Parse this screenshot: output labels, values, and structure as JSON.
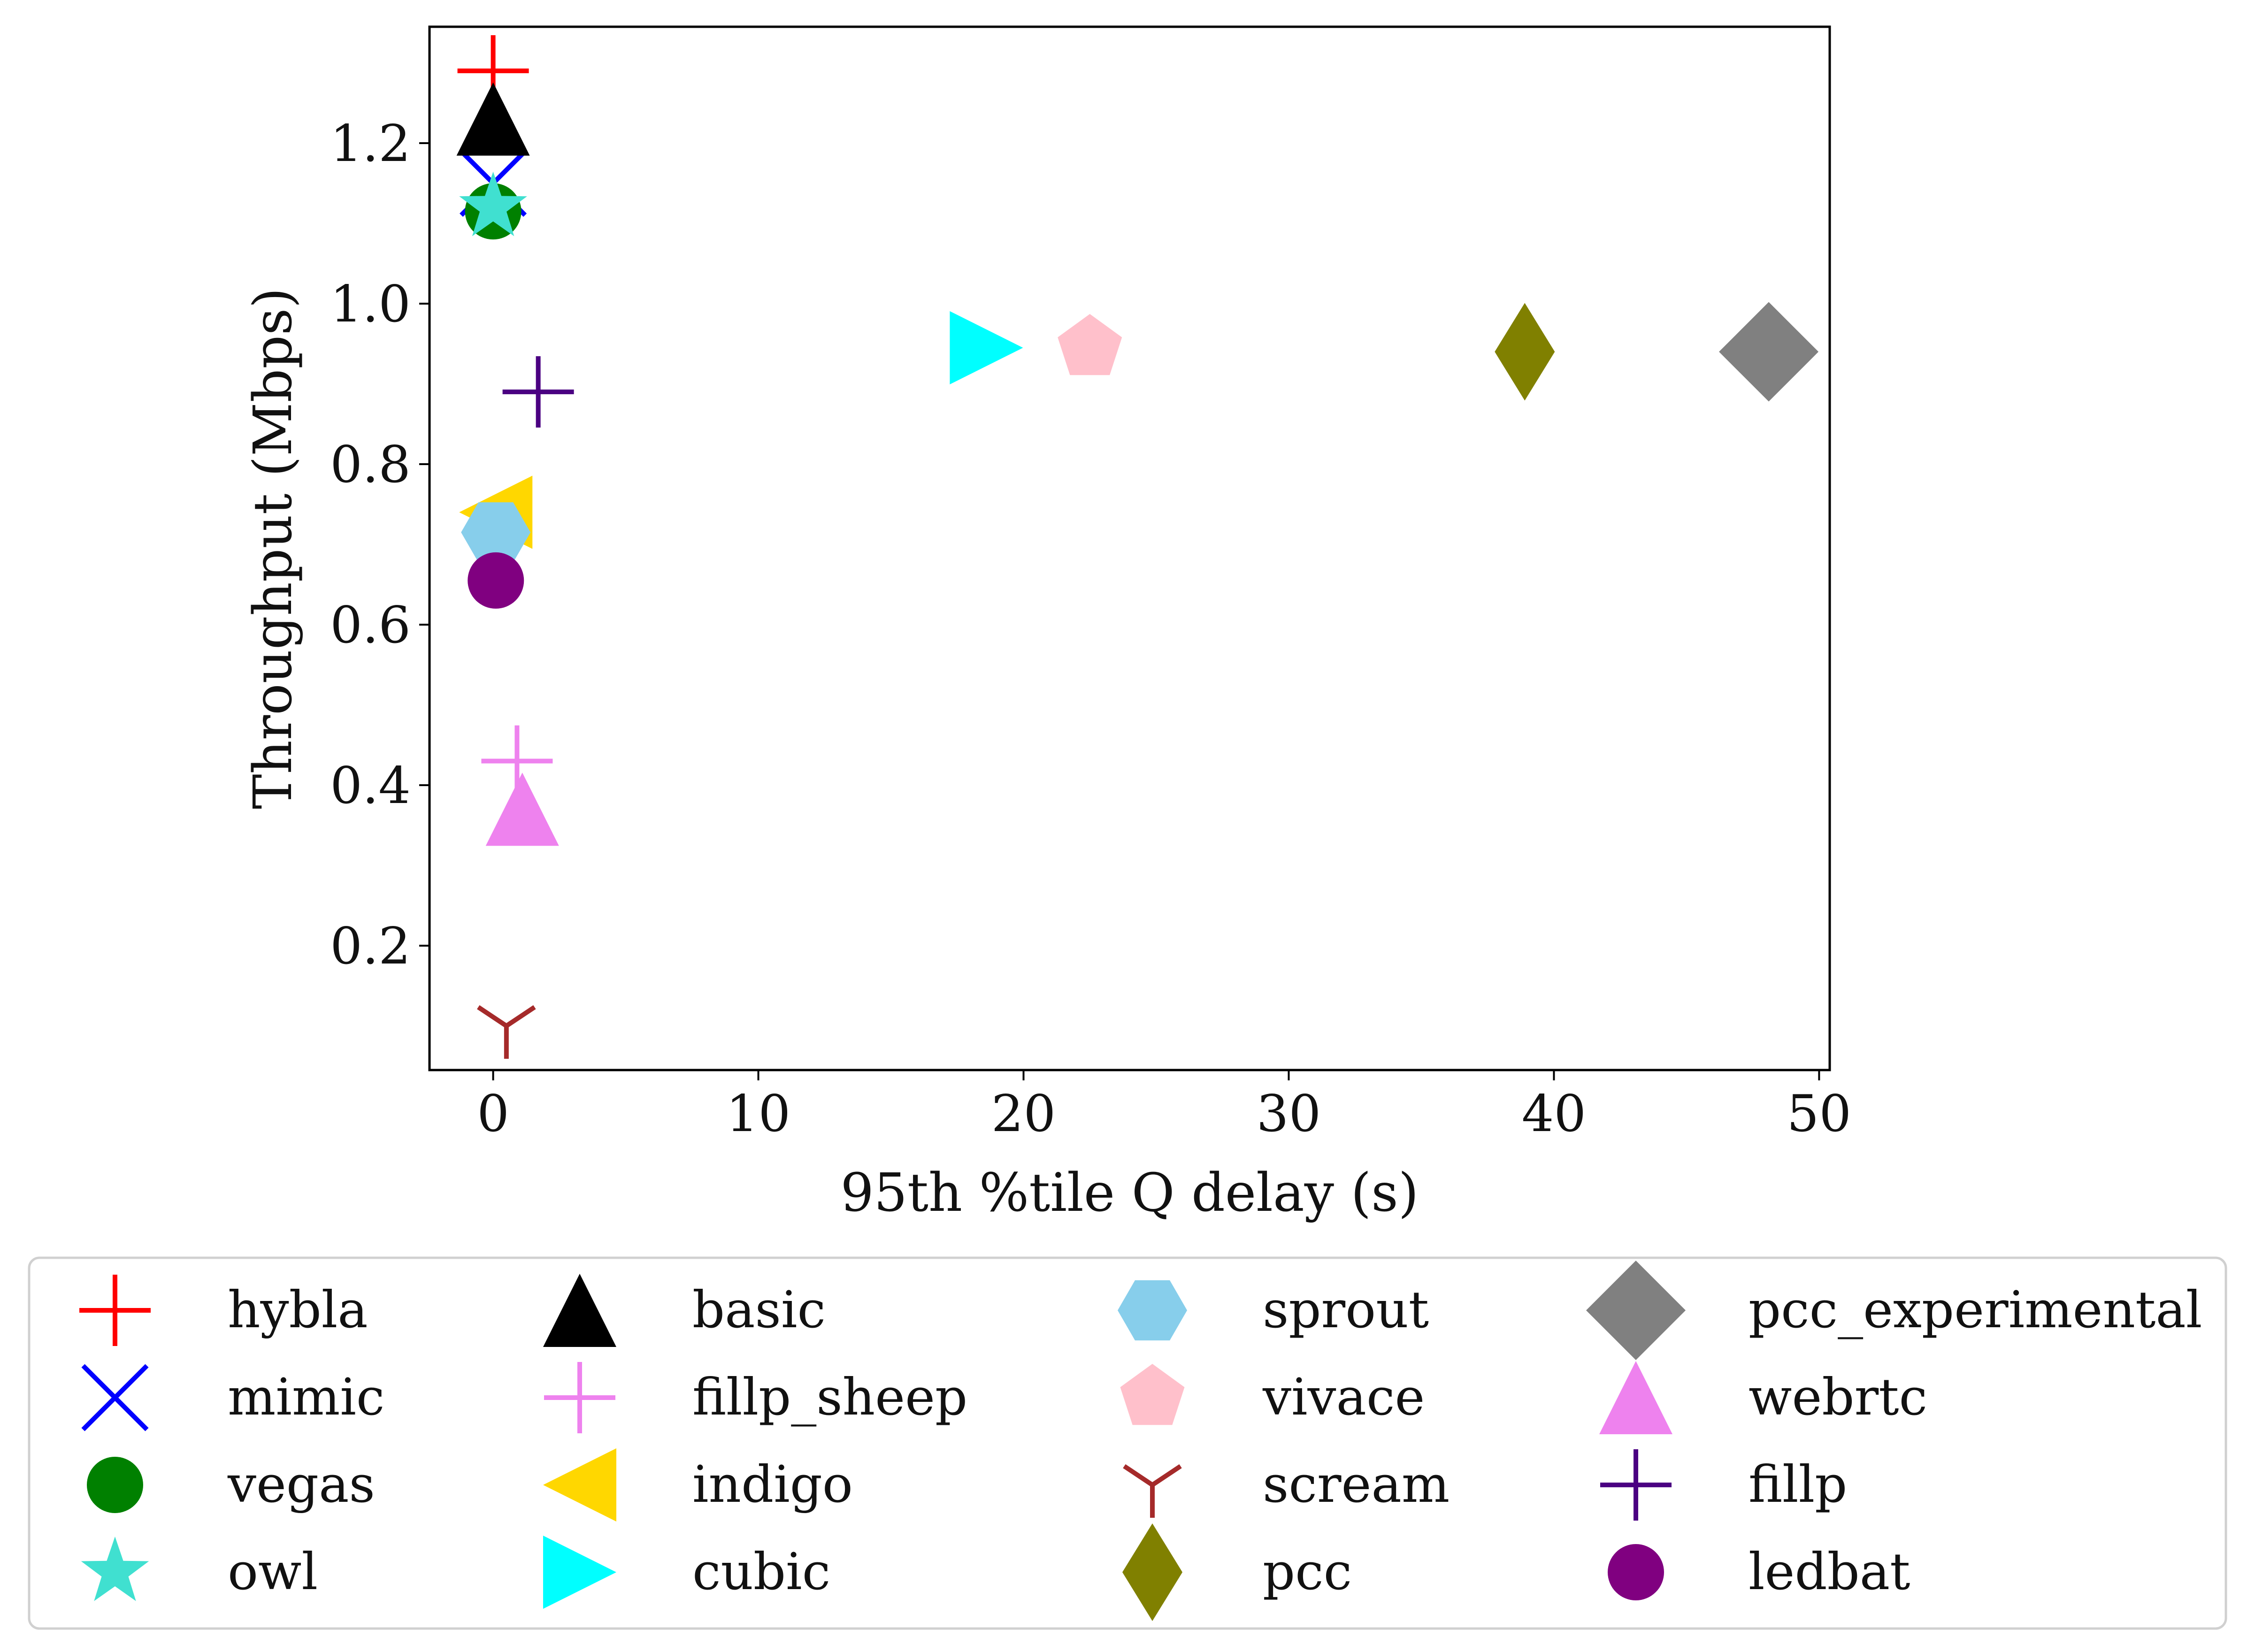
{
  "chart_data": {
    "type": "scatter",
    "title": "",
    "xlabel": "95th %tile Q delay (s)",
    "ylabel": "Throughput (Mbps)",
    "xlim": [
      -2.4,
      50.4
    ],
    "ylim": [
      0.045,
      1.345
    ],
    "xticks": [
      0,
      10,
      20,
      30,
      40,
      50
    ],
    "yticks": [
      0.2,
      0.4,
      0.6,
      0.8,
      1.0,
      1.2
    ],
    "xtick_labels": [
      "0",
      "10",
      "20",
      "30",
      "40",
      "50"
    ],
    "ytick_labels": [
      "0.2",
      "0.4",
      "0.6",
      "0.8",
      "1.0",
      "1.2"
    ],
    "grid": false,
    "legend_position": "below plot, 4 columns",
    "series": [
      {
        "name": "hybla",
        "x": 0.0,
        "y": 1.29,
        "marker": "plus",
        "color": "#ff0000"
      },
      {
        "name": "mimic",
        "x": 0.0,
        "y": 1.15,
        "marker": "x",
        "color": "#0000ff"
      },
      {
        "name": "vegas",
        "x": 0.0,
        "y": 1.115,
        "marker": "circle",
        "color": "#008000"
      },
      {
        "name": "owl",
        "x": 0.0,
        "y": 1.12,
        "marker": "star",
        "color": "#40e0d0"
      },
      {
        "name": "basic",
        "x": 0.0,
        "y": 1.23,
        "marker": "triangle-up",
        "color": "#000000"
      },
      {
        "name": "fillp_sheep",
        "x": 0.9,
        "y": 0.43,
        "marker": "plus",
        "color": "#ee82ee"
      },
      {
        "name": "indigo",
        "x": 0.1,
        "y": 0.74,
        "marker": "triangle-left",
        "color": "#ffd700"
      },
      {
        "name": "cubic",
        "x": 18.6,
        "y": 0.945,
        "marker": "triangle-right",
        "color": "#00ffff"
      },
      {
        "name": "sprout",
        "x": 0.1,
        "y": 0.715,
        "marker": "hexagon",
        "color": "#87ceeb"
      },
      {
        "name": "vivace",
        "x": 22.5,
        "y": 0.945,
        "marker": "pentagon",
        "color": "#ffc0cb"
      },
      {
        "name": "scream",
        "x": 0.5,
        "y": 0.1,
        "marker": "tri-down",
        "color": "#a52a2a"
      },
      {
        "name": "pcc",
        "x": 38.9,
        "y": 0.94,
        "marker": "thin-diamond",
        "color": "#808000"
      },
      {
        "name": "pcc_experimental",
        "x": 48.1,
        "y": 0.94,
        "marker": "diamond",
        "color": "#808080"
      },
      {
        "name": "webrtc",
        "x": 1.1,
        "y": 0.37,
        "marker": "triangle-up",
        "color": "#ee82ee"
      },
      {
        "name": "fillp",
        "x": 1.7,
        "y": 0.89,
        "marker": "plus",
        "color": "#4b0082"
      },
      {
        "name": "ledbat",
        "x": 0.1,
        "y": 0.655,
        "marker": "circle",
        "color": "#800080"
      }
    ]
  }
}
